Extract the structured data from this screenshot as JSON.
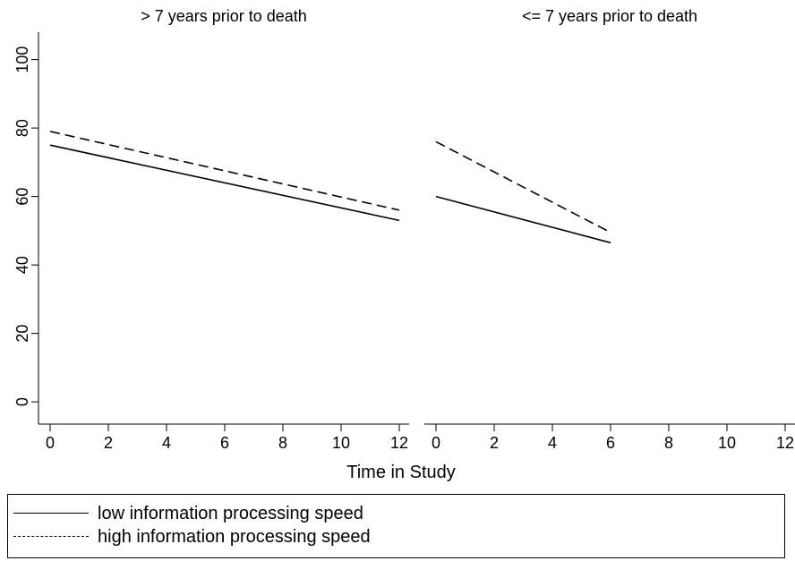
{
  "chart_data": {
    "type": "line",
    "xlabel": "Time in Study",
    "ylabel": "",
    "xlim": [
      0,
      12
    ],
    "ylim": [
      0,
      100
    ],
    "xticks": [
      0,
      2,
      4,
      6,
      8,
      10,
      12
    ],
    "yticks": [
      0,
      20,
      40,
      60,
      80,
      100
    ],
    "grid": false,
    "legend_position": "bottom",
    "panels": [
      {
        "title": "> 7 years prior to death",
        "series": [
          {
            "name": "low information processing speed",
            "style": "solid",
            "x": [
              0,
              12
            ],
            "y": [
              75,
              53
            ]
          },
          {
            "name": "high information processing speed",
            "style": "dashed",
            "x": [
              0,
              12
            ],
            "y": [
              79,
              56
            ]
          }
        ]
      },
      {
        "title": "<= 7 years prior to death",
        "series": [
          {
            "name": "low information processing speed",
            "style": "solid",
            "x": [
              0,
              6
            ],
            "y": [
              60,
              46.5
            ]
          },
          {
            "name": "high information processing speed",
            "style": "dashed",
            "x": [
              0,
              6
            ],
            "y": [
              76,
              49.5
            ]
          }
        ]
      }
    ]
  },
  "legend": {
    "items": [
      {
        "label": "low information processing speed",
        "style": "solid"
      },
      {
        "label": "high information processing speed",
        "style": "dashed"
      }
    ]
  },
  "colors": {
    "line": "#000000",
    "background": "#ffffff"
  }
}
